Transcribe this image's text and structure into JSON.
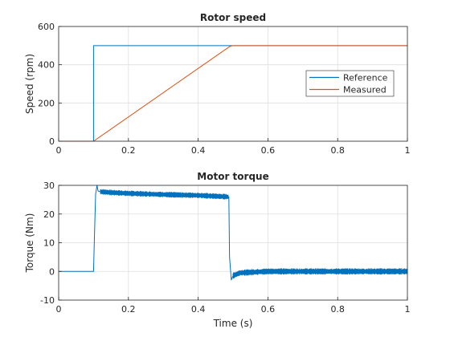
{
  "chart_data": [
    {
      "type": "line",
      "title": "Rotor speed",
      "xlabel": "",
      "ylabel": "Speed (rpm)",
      "xlim": [
        0,
        1
      ],
      "ylim": [
        0,
        600
      ],
      "xticks": [
        "0",
        "0.2",
        "0.4",
        "0.6",
        "0.8",
        "1"
      ],
      "yticks": [
        "0",
        "200",
        "400",
        "600"
      ],
      "grid": true,
      "legend_position": "center-right",
      "series": [
        {
          "name": "Reference",
          "color": "#0072bd",
          "x": [
            0,
            0.1,
            0.1,
            1.0
          ],
          "y": [
            0,
            0,
            500,
            500
          ]
        },
        {
          "name": "Measured",
          "color": "#d95319",
          "x": [
            0,
            0.1,
            0.49,
            0.5,
            1.0
          ],
          "y": [
            0,
            0,
            495,
            500,
            500
          ]
        }
      ]
    },
    {
      "type": "line",
      "title": "Motor torque",
      "xlabel": "Time (s)",
      "ylabel": "Torque (Nm)",
      "xlim": [
        0,
        1
      ],
      "ylim": [
        -10,
        30
      ],
      "xticks": [
        "0",
        "0.2",
        "0.4",
        "0.6",
        "0.8",
        "1"
      ],
      "yticks": [
        "-10",
        "0",
        "10",
        "20",
        "30"
      ],
      "grid": true,
      "series": [
        {
          "color": "#0072bd",
          "x": [
            0,
            0.1,
            0.103,
            0.106,
            0.11,
            0.113,
            0.12,
            0.15,
            0.2,
            0.3,
            0.4,
            0.488,
            0.49,
            0.495,
            0.5,
            0.52,
            0.6,
            0.8,
            1.0
          ],
          "y": [
            0,
            0,
            14,
            27,
            30,
            28,
            27.8,
            27.5,
            27.2,
            26.8,
            26.5,
            26,
            5,
            -3,
            -1.5,
            -0.5,
            0,
            0,
            0
          ]
        }
      ]
    }
  ]
}
